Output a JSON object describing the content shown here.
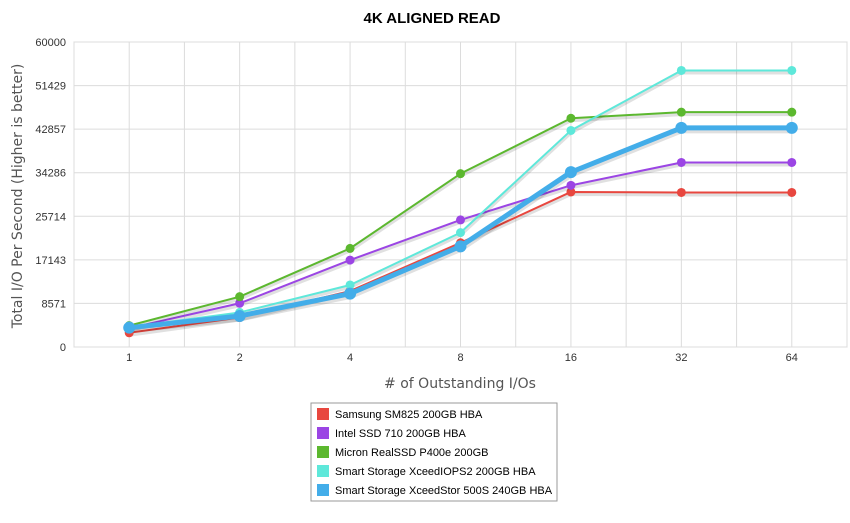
{
  "chart_data": {
    "type": "line",
    "title": "4K ALIGNED READ",
    "xlabel": "# of Outstanding I/Os",
    "ylabel": "Total I/O Per Second (Higher is better)",
    "categories": [
      "1",
      "2",
      "4",
      "8",
      "16",
      "32",
      "64"
    ],
    "yticks": [
      "0",
      "8571",
      "17143",
      "25714",
      "34286",
      "42857",
      "51429",
      "60000"
    ],
    "ylim": [
      0,
      60000
    ],
    "grid": true,
    "legend_position": "bottom-center",
    "series": [
      {
        "name": "Samsung SM825 200GB HBA",
        "color": "#e8473f",
        "values": [
          2800,
          5800,
          11000,
          20500,
          30500,
          30400,
          30400
        ]
      },
      {
        "name": "Intel SSD 710 200GB HBA",
        "color": "#9b45e4",
        "values": [
          3700,
          8600,
          17100,
          25000,
          31800,
          36300,
          36300
        ]
      },
      {
        "name": "Micron RealSSD P400e 200GB",
        "color": "#5cb82f",
        "values": [
          4200,
          9900,
          19400,
          34100,
          45000,
          46200,
          46200
        ]
      },
      {
        "name": "Smart Storage XceedIOPS2 200GB HBA",
        "color": "#5ee8da",
        "values": [
          3900,
          6800,
          12200,
          22500,
          42600,
          54400,
          54400
        ]
      },
      {
        "name": "Smart Storage XceedStor 500S 240GB HBA",
        "color": "#43ade9",
        "values": [
          3800,
          6100,
          10500,
          19800,
          34400,
          43100,
          43100
        ]
      }
    ]
  }
}
